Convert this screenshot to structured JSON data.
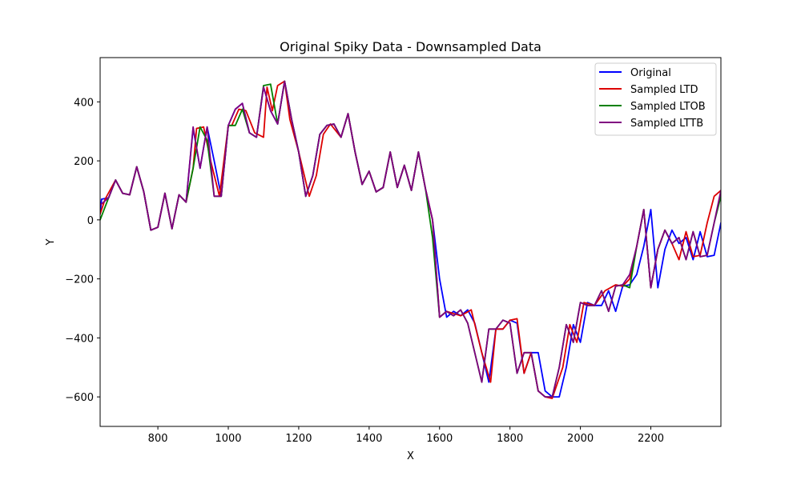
{
  "chart_data": {
    "type": "line",
    "title": "Original Spiky Data - Downsampled Data",
    "xlabel": "X",
    "ylabel": "Y",
    "xlim": [
      636,
      2399
    ],
    "ylim": [
      -700,
      550
    ],
    "xticks": [
      800,
      1000,
      1200,
      1400,
      1600,
      1800,
      2000,
      2200
    ],
    "yticks": [
      -600,
      -400,
      -200,
      0,
      200,
      400
    ],
    "xtick_labels": [
      "800",
      "1000",
      "1200",
      "1400",
      "1600",
      "1800",
      "2000",
      "2200"
    ],
    "ytick_labels": [
      "−600",
      "−400",
      "−200",
      "0",
      "200",
      "400"
    ],
    "legend_position": "top-right",
    "series": [
      {
        "name": "Original",
        "color": "#0000ff",
        "x": [
          636,
          640,
          660,
          680,
          700,
          720,
          740,
          760,
          780,
          800,
          820,
          840,
          860,
          880,
          900,
          920,
          940,
          960,
          980,
          1000,
          1020,
          1040,
          1060,
          1080,
          1100,
          1120,
          1140,
          1160,
          1180,
          1200,
          1220,
          1240,
          1260,
          1280,
          1300,
          1320,
          1340,
          1360,
          1380,
          1400,
          1420,
          1440,
          1460,
          1480,
          1500,
          1520,
          1540,
          1560,
          1580,
          1600,
          1620,
          1640,
          1660,
          1680,
          1700,
          1720,
          1740,
          1760,
          1780,
          1800,
          1820,
          1840,
          1860,
          1880,
          1900,
          1920,
          1940,
          1960,
          1980,
          2000,
          2020,
          2040,
          2060,
          2080,
          2100,
          2120,
          2140,
          2160,
          2180,
          2200,
          2220,
          2240,
          2260,
          2280,
          2300,
          2320,
          2340,
          2360,
          2380,
          2399
        ],
        "values": [
          20,
          70,
          75,
          135,
          90,
          85,
          180,
          95,
          -35,
          -25,
          90,
          -30,
          85,
          60,
          310,
          175,
          315,
          200,
          80,
          320,
          375,
          395,
          295,
          280,
          450,
          370,
          325,
          470,
          340,
          230,
          80,
          150,
          290,
          320,
          325,
          280,
          360,
          230,
          120,
          165,
          95,
          110,
          230,
          110,
          185,
          100,
          230,
          105,
          0,
          -200,
          -330,
          -310,
          -325,
          -305,
          -350,
          -450,
          -550,
          -370,
          -370,
          -340,
          -350,
          -520,
          -450,
          -450,
          -580,
          -600,
          -600,
          -500,
          -355,
          -415,
          -280,
          -290,
          -290,
          -240,
          -310,
          -225,
          -220,
          -185,
          -90,
          35,
          -230,
          -100,
          -35,
          -80,
          -60,
          -135,
          -40,
          -125,
          -120,
          -10
        ]
      },
      {
        "name": "Sampled LTD",
        "color": "#dd0000",
        "x": [
          636,
          650,
          680,
          700,
          720,
          740,
          760,
          780,
          800,
          820,
          840,
          860,
          880,
          900,
          910,
          930,
          950,
          975,
          1000,
          1010,
          1030,
          1050,
          1075,
          1100,
          1110,
          1125,
          1140,
          1160,
          1175,
          1200,
          1230,
          1250,
          1270,
          1290,
          1320,
          1340,
          1360,
          1380,
          1400,
          1420,
          1440,
          1460,
          1480,
          1500,
          1520,
          1540,
          1560,
          1580,
          1600,
          1620,
          1660,
          1690,
          1720,
          1745,
          1760,
          1780,
          1800,
          1820,
          1840,
          1860,
          1880,
          1900,
          1920,
          1950,
          1970,
          1990,
          2010,
          2040,
          2070,
          2100,
          2120,
          2140,
          2160,
          2180,
          2200,
          2220,
          2240,
          2260,
          2280,
          2300,
          2320,
          2340,
          2360,
          2380,
          2399
        ],
        "values": [
          20,
          70,
          135,
          90,
          85,
          180,
          95,
          -35,
          -25,
          90,
          -30,
          85,
          60,
          175,
          310,
          315,
          200,
          80,
          320,
          320,
          375,
          370,
          295,
          280,
          450,
          370,
          455,
          470,
          340,
          230,
          80,
          150,
          290,
          325,
          280,
          360,
          230,
          120,
          165,
          95,
          110,
          230,
          110,
          185,
          100,
          230,
          105,
          0,
          -330,
          -310,
          -325,
          -305,
          -450,
          -550,
          -370,
          -370,
          -340,
          -335,
          -520,
          -450,
          -580,
          -600,
          -605,
          -500,
          -355,
          -415,
          -280,
          -290,
          -240,
          -220,
          -225,
          -200,
          -90,
          35,
          -230,
          -100,
          -35,
          -80,
          -135,
          -40,
          -125,
          -120,
          -10,
          80,
          100
        ]
      },
      {
        "name": "Sampled LTOB",
        "color": "#008000",
        "x": [
          636,
          660,
          680,
          700,
          720,
          740,
          760,
          780,
          800,
          820,
          840,
          860,
          880,
          900,
          920,
          940,
          960,
          980,
          1000,
          1020,
          1040,
          1060,
          1080,
          1100,
          1120,
          1140,
          1160,
          1180,
          1200,
          1220,
          1240,
          1260,
          1280,
          1300,
          1320,
          1340,
          1360,
          1380,
          1400,
          1420,
          1440,
          1460,
          1480,
          1500,
          1520,
          1540,
          1560,
          1580,
          1600,
          1620,
          1640,
          1660,
          1680,
          1700,
          1720,
          1740,
          1760,
          1780,
          1800,
          1820,
          1840,
          1860,
          1880,
          1900,
          1920,
          1940,
          1960,
          1980,
          2000,
          2020,
          2040,
          2060,
          2080,
          2100,
          2120,
          2140,
          2160,
          2180,
          2200,
          2220,
          2240,
          2260,
          2280,
          2300,
          2320,
          2340,
          2360,
          2380,
          2399
        ],
        "values": [
          0,
          75,
          135,
          90,
          85,
          180,
          95,
          -35,
          -25,
          90,
          -30,
          85,
          60,
          175,
          315,
          270,
          80,
          80,
          320,
          320,
          375,
          295,
          280,
          455,
          460,
          325,
          470,
          340,
          230,
          80,
          150,
          290,
          320,
          325,
          280,
          360,
          230,
          120,
          165,
          95,
          110,
          230,
          110,
          185,
          100,
          230,
          105,
          -60,
          -330,
          -310,
          -325,
          -305,
          -350,
          -450,
          -550,
          -370,
          -370,
          -340,
          -350,
          -520,
          -450,
          -450,
          -580,
          -600,
          -600,
          -500,
          -355,
          -415,
          -280,
          -290,
          -290,
          -240,
          -310,
          -225,
          -220,
          -230,
          -90,
          35,
          -230,
          -100,
          -35,
          -80,
          -60,
          -135,
          -40,
          -125,
          -120,
          -10,
          80
        ]
      },
      {
        "name": "Sampled LTTB",
        "color": "#800080",
        "x": [
          636,
          660,
          680,
          700,
          720,
          740,
          760,
          780,
          800,
          820,
          840,
          860,
          880,
          900,
          920,
          940,
          960,
          980,
          1000,
          1020,
          1040,
          1060,
          1080,
          1100,
          1120,
          1140,
          1160,
          1180,
          1200,
          1220,
          1240,
          1260,
          1280,
          1300,
          1320,
          1340,
          1360,
          1380,
          1400,
          1420,
          1440,
          1460,
          1480,
          1500,
          1520,
          1540,
          1560,
          1580,
          1600,
          1620,
          1640,
          1660,
          1680,
          1700,
          1720,
          1740,
          1760,
          1780,
          1800,
          1820,
          1840,
          1860,
          1880,
          1900,
          1920,
          1940,
          1960,
          1980,
          2000,
          2020,
          2040,
          2060,
          2080,
          2100,
          2120,
          2140,
          2160,
          2180,
          2200,
          2220,
          2240,
          2260,
          2280,
          2300,
          2320,
          2340,
          2360,
          2380,
          2399
        ],
        "values": [
          50,
          75,
          135,
          90,
          85,
          180,
          95,
          -35,
          -25,
          90,
          -30,
          85,
          60,
          315,
          175,
          315,
          80,
          80,
          320,
          375,
          395,
          295,
          280,
          450,
          370,
          325,
          470,
          340,
          230,
          80,
          150,
          290,
          320,
          325,
          280,
          360,
          230,
          120,
          165,
          95,
          110,
          230,
          110,
          185,
          100,
          230,
          105,
          0,
          -330,
          -310,
          -325,
          -305,
          -350,
          -450,
          -550,
          -370,
          -370,
          -340,
          -350,
          -520,
          -450,
          -450,
          -580,
          -600,
          -600,
          -500,
          -355,
          -415,
          -280,
          -290,
          -290,
          -240,
          -310,
          -225,
          -220,
          -185,
          -90,
          35,
          -230,
          -100,
          -35,
          -80,
          -60,
          -135,
          -40,
          -125,
          -120,
          -10,
          100
        ]
      }
    ]
  }
}
